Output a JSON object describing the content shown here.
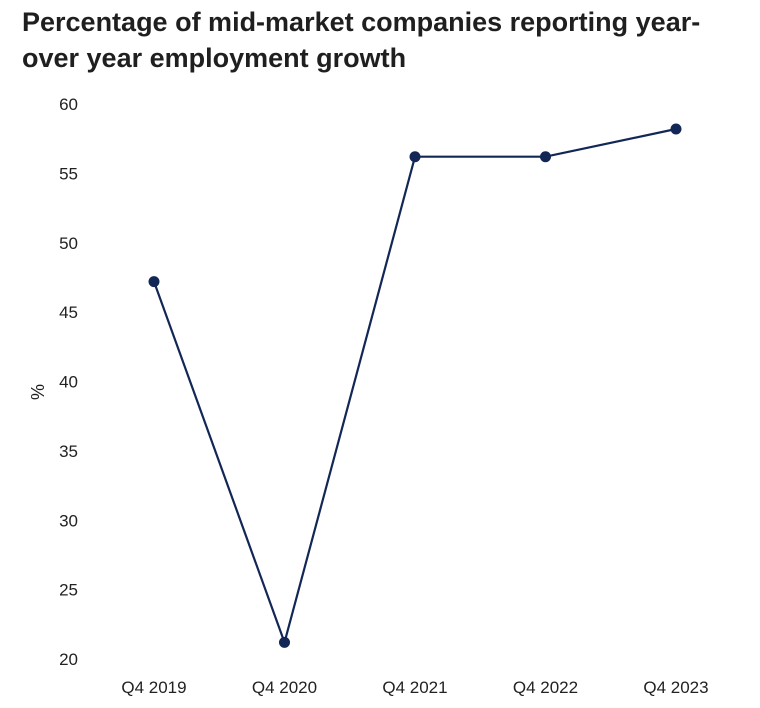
{
  "chart_data": {
    "type": "line",
    "title": "Percentage of mid-market companies reporting year-over year employment growth",
    "xlabel": "",
    "ylabel": "%",
    "categories": [
      "Q4 2019",
      "Q4 2020",
      "Q4 2021",
      "Q4 2022",
      "Q4 2023"
    ],
    "series": [
      {
        "values": [
          47.2,
          21.2,
          56.2,
          56.2,
          58.2
        ]
      }
    ],
    "ylim": [
      20,
      60
    ],
    "yticks": [
      "20",
      "25",
      "30",
      "35",
      "40",
      "45",
      "50",
      "55",
      "60"
    ],
    "grid": false,
    "legend": "none",
    "line_color": "#132756",
    "marker_color": "#132756"
  }
}
